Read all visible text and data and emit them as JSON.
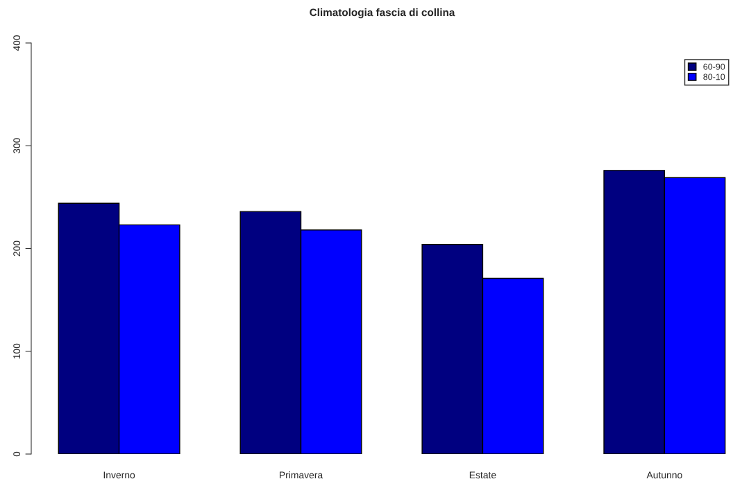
{
  "chart_data": {
    "type": "bar",
    "title": "Climatologia fascia di collina",
    "categories": [
      "Inverno",
      "Primavera",
      "Estate",
      "Autunno"
    ],
    "series": [
      {
        "name": "60-90",
        "color": "#000080",
        "values": [
          244,
          236,
          204,
          276
        ]
      },
      {
        "name": "80-10",
        "color": "#0000ff",
        "values": [
          223,
          218,
          171,
          269
        ]
      }
    ],
    "ylim": [
      0,
      400
    ],
    "yticks": [
      0,
      100,
      200,
      300,
      400
    ],
    "grid": false,
    "legend": "top right"
  }
}
